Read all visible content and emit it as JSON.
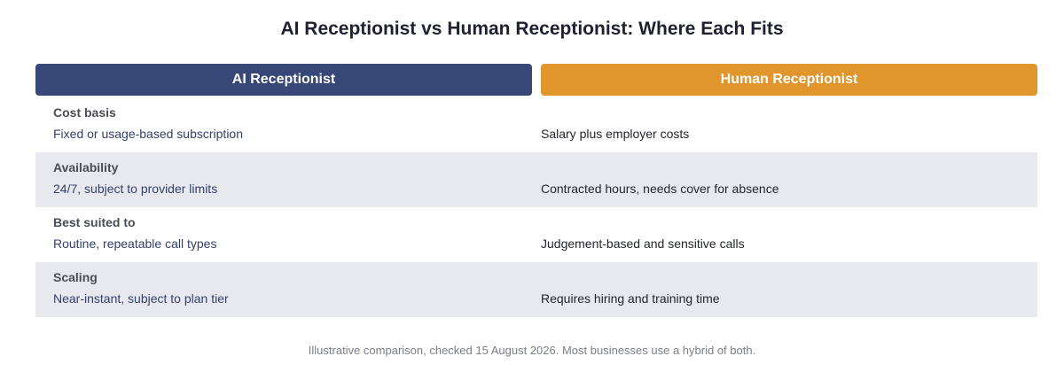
{
  "title": "AI Receptionist vs Human Receptionist: Where Each Fits",
  "columns": {
    "ai": "AI Receptionist",
    "human": "Human Receptionist"
  },
  "colors": {
    "ai_header": "#374878",
    "human_header": "#e0962c",
    "row_shade": "#e8e9ef"
  },
  "rows": [
    {
      "label": "Cost basis",
      "ai": "Fixed or usage-based subscription",
      "human": "Salary plus employer costs"
    },
    {
      "label": "Availability",
      "ai": "24/7, subject to provider limits",
      "human": "Contracted hours, needs cover for absence"
    },
    {
      "label": "Best suited to",
      "ai": "Routine, repeatable call types",
      "human": "Judgement-based and sensitive calls"
    },
    {
      "label": "Scaling",
      "ai": "Near-instant, subject to plan tier",
      "human": "Requires hiring and training time"
    }
  ],
  "footnote": "Illustrative comparison, checked 15 August 2026. Most businesses use a hybrid of both."
}
